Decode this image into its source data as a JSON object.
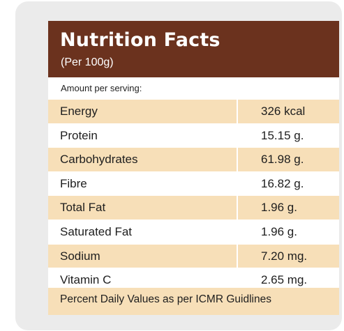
{
  "header": {
    "title": "Nutrition Facts",
    "subtitle": "(Per 100g)"
  },
  "amount_label": "Amount per serving:",
  "nutrients": [
    {
      "name": "Energy",
      "value": "326 kcal"
    },
    {
      "name": "Protein",
      "value": "15.15 g."
    },
    {
      "name": "Carbohydrates",
      "value": "61.98 g."
    },
    {
      "name": "Fibre",
      "value": "16.82 g."
    },
    {
      "name": "Total Fat",
      "value": "1.96 g."
    },
    {
      "name": "Saturated Fat",
      "value": "1.96 g."
    },
    {
      "name": "Sodium",
      "value": "7.20 mg."
    },
    {
      "name": "Vitamin C",
      "value": "2.65 mg."
    }
  ],
  "footer": "Percent Daily Values as per ICMR Guidlines",
  "colors": {
    "header_bg": "#6b321e",
    "shaded_row": "#f7dfb8",
    "card_bg": "#ebebeb"
  }
}
